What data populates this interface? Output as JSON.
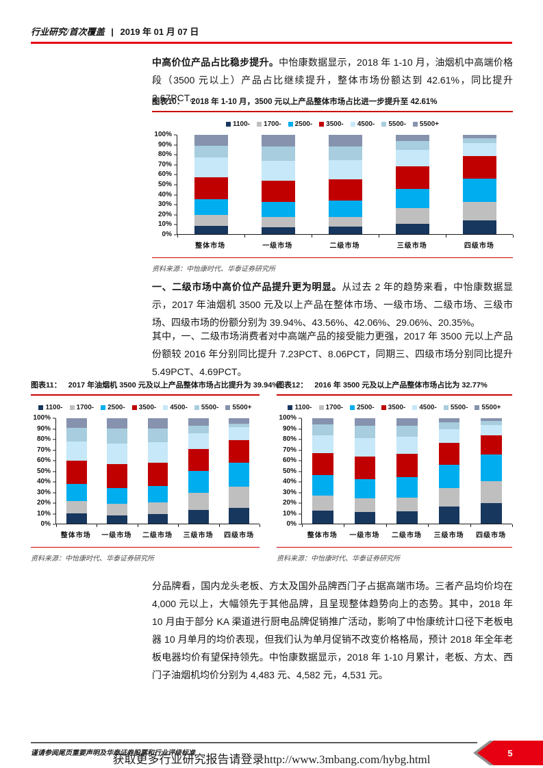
{
  "header": {
    "section": "行业研究/首次覆盖",
    "separator": "|",
    "date": "2019 年 01 月 07 日"
  },
  "paragraphs": {
    "p1_bold": "中高价位产品占比稳步提升。",
    "p1_rest": "中怡康数据显示，2018 年 1-10 月，油烟机中高端价格段（3500 元以上）产品占比继续提升，整体市场份额达到 42.61%，同比提升 2.67PCT。",
    "p2_bold": "一、二级市场中高价位产品提升更为明显。",
    "p2_rest": "从过去 2 年的趋势来看，中怡康数据显示，2017 年油烟机 3500 元及以上产品在整体市场、一级市场、二级市场、三级市场、四级市场的份额分别为 39.94%、43.56%、42.06%、29.06%、20.35%。",
    "p3": "其中，一、二级市场消费者对中高端产品的接受能力更强，2017 年 3500 元以上产品份额较 2016 年分别同比提升 7.23PCT、8.06PCT，同期三、四级市场分别同比提升 5.49PCT、4.69PCT。",
    "p4": "分品牌看，国内龙头老板、方太及国外品牌西门子占据高端市场。三者产品均价均在 4,000 元以上，大幅领先于其他品牌，且呈现整体趋势向上的态势。其中，2018 年 10 月由于部分 KA 渠道进行厨电品牌促销推广活动，影响了中怡康统计口径下老板电器 10 月单月的均价表现，但我们认为单月促销不改变价格格局，预计 2018 年全年老板电器均价有望保持领先。中怡康数据显示，2018 年 1-10 月累计，老板、方太、西门子油烟机均价分别为 4,483 元、4,582 元，4,531 元。"
  },
  "charts": [
    {
      "label": "图表10：",
      "title": "2018 年 1-10 月，3500 元以上产品整体市场占比进一步提升至 42.61%",
      "source": "资料来源：中怡康时代、华泰证券研究所",
      "chart_data": {
        "type": "bar",
        "stacked": true,
        "unit": "percent share",
        "grid": false,
        "legend_position": "top",
        "ylim": [
          0,
          100
        ],
        "yticks": [
          "0%",
          "10%",
          "20%",
          "30%",
          "40%",
          "50%",
          "60%",
          "70%",
          "80%",
          "90%",
          "100%"
        ],
        "categories": [
          "整体市场",
          "一级市场",
          "二级市场",
          "三级市场",
          "四级市场"
        ],
        "series": [
          {
            "name": "1100-",
            "color": "#17375E",
            "values": [
              8,
              7,
              7.5,
              10.5,
              13.5
            ]
          },
          {
            "name": "1700-",
            "color": "#BFBFBF",
            "values": [
              11,
              10.5,
              10,
              15.5,
              19
            ]
          },
          {
            "name": "2500-",
            "color": "#00AEEF",
            "values": [
              16.5,
              15,
              16,
              19.5,
              23.5
            ]
          },
          {
            "name": "3500-",
            "color": "#C00000",
            "values": [
              22,
              21.5,
              21.5,
              22.5,
              22.5
            ]
          },
          {
            "name": "4500-",
            "color": "#C6E8F8",
            "values": [
              19.5,
              20,
              19.5,
              17,
              13
            ]
          },
          {
            "name": "5500-",
            "color": "#A7CDDE",
            "values": [
              12,
              14,
              13.5,
              8.5,
              5
            ]
          },
          {
            "name": "5500+",
            "color": "#8692AE",
            "values": [
              11,
              12,
              12,
              6.5,
              3.5
            ]
          }
        ]
      }
    },
    {
      "label": "图表11：",
      "title": "2017 年油烟机 3500 元及以上产品整体市场占比提升为 39.94%",
      "source": "资料来源：中怡康时代、华泰证券研究所",
      "chart_data": {
        "type": "bar",
        "stacked": true,
        "unit": "percent share",
        "grid": false,
        "legend_position": "top",
        "ylim": [
          0,
          100
        ],
        "yticks": [
          "0%",
          "10%",
          "20%",
          "30%",
          "40%",
          "50%",
          "60%",
          "70%",
          "80%",
          "90%",
          "100%"
        ],
        "categories": [
          "整体市场",
          "一级市场",
          "二级市场",
          "三级市场",
          "四级市场"
        ],
        "series": [
          {
            "name": "1100-",
            "color": "#17375E",
            "values": [
              9.5,
              8,
              9,
              13,
              15
            ]
          },
          {
            "name": "1700-",
            "color": "#BFBFBF",
            "values": [
              12,
              11,
              11,
              16.5,
              20
            ]
          },
          {
            "name": "2500-",
            "color": "#00AEEF",
            "values": [
              16.5,
              15,
              15.5,
              20.5,
              23
            ]
          },
          {
            "name": "3500-",
            "color": "#C00000",
            "values": [
              22,
              22.5,
              22.5,
              21,
              21.5
            ]
          },
          {
            "name": "4500-",
            "color": "#C6E8F8",
            "values": [
              18,
              19.5,
              19,
              15,
              12
            ]
          },
          {
            "name": "5500-",
            "color": "#A7CDDE",
            "values": [
              13,
              14,
              13,
              7,
              3.5
            ]
          },
          {
            "name": "5500+",
            "color": "#8692AE",
            "values": [
              9,
              10,
              10,
              7,
              5
            ]
          }
        ]
      }
    },
    {
      "label": "图表12：",
      "title": "2016 年 3500 元及以上产品整体市场占比为 32.77%",
      "source": "资料来源：中怡康时代、华泰证券研究所",
      "chart_data": {
        "type": "bar",
        "stacked": true,
        "unit": "percent share",
        "grid": false,
        "legend_position": "top",
        "ylim": [
          0,
          100
        ],
        "yticks": [
          "0%",
          "10%",
          "20%",
          "30%",
          "40%",
          "50%",
          "60%",
          "70%",
          "80%",
          "90%",
          "100%"
        ],
        "categories": [
          "整体市场",
          "一级市场",
          "二级市场",
          "三级市场",
          "四级市场"
        ],
        "series": [
          {
            "name": "1100-",
            "color": "#17375E",
            "values": [
              12.5,
              11,
              12,
              16,
              19.5
            ]
          },
          {
            "name": "1700-",
            "color": "#BFBFBF",
            "values": [
              14,
              13,
              13,
              18,
              21
            ]
          },
          {
            "name": "2500-",
            "color": "#00AEEF",
            "values": [
              19.5,
              18,
              19.5,
              22,
              25
            ]
          },
          {
            "name": "3500-",
            "color": "#C00000",
            "values": [
              21,
              21.5,
              21.5,
              20.5,
              18.5
            ]
          },
          {
            "name": "4500-",
            "color": "#C6E8F8",
            "values": [
              16.5,
              18,
              16.5,
              13,
              9.5
            ]
          },
          {
            "name": "5500-",
            "color": "#A7CDDE",
            "values": [
              10.5,
              11.5,
              10.5,
              6.5,
              4
            ]
          },
          {
            "name": "5500+",
            "color": "#8692AE",
            "values": [
              6,
              7,
              7,
              4,
              2.5
            ]
          }
        ]
      }
    }
  ],
  "footer": {
    "disclaimer": "谨请参阅尾页重要声明及华泰证券股票和行业评级标准",
    "watermark": "获取更多行业研究报告请登录http://www.3mbang.com/hybg.html",
    "page_number": "5"
  },
  "colors": {
    "accent_red": "#E60012",
    "rule_red": "#CC0000",
    "footer_gray": "#5A5A5A"
  }
}
